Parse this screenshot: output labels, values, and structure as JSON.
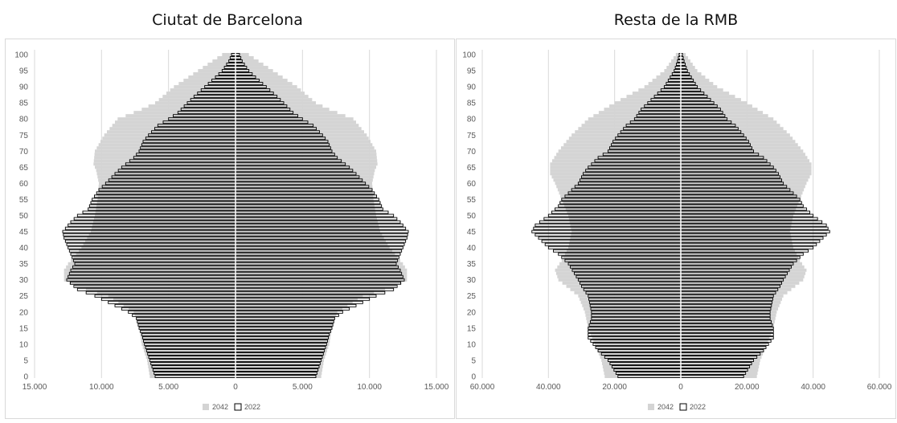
{
  "panels": [
    {
      "title": "Ciutat de Barcelona"
    },
    {
      "title": "Resta de la RMB"
    }
  ],
  "legend": {
    "items": [
      {
        "label": "2042",
        "color": "#d4d4d4"
      },
      {
        "label": "2022",
        "color": "#ffffff"
      }
    ]
  },
  "colors": {
    "bar_2042": "#d4d4d4",
    "bar_2022_fill": "#d7d7d7",
    "bar_2022_stroke": "#000000",
    "grid": "#d9d9d9",
    "center_line": "#ffffff"
  },
  "chart_data": [
    {
      "type": "bar",
      "orientation": "horizontal",
      "subtype": "population-pyramid",
      "title": "Ciutat de Barcelona",
      "xlim": [
        -15000,
        15000
      ],
      "ylim": [
        0,
        100
      ],
      "x_ticks": [
        -15000,
        -10000,
        -5000,
        0,
        5000,
        10000,
        15000
      ],
      "x_tick_labels": [
        "15.000",
        "10.000",
        "5.000",
        "0",
        "5.000",
        "10.000",
        "15.000"
      ],
      "y_ticks": [
        0,
        5,
        10,
        15,
        20,
        25,
        30,
        35,
        40,
        45,
        50,
        55,
        60,
        65,
        70,
        75,
        80,
        85,
        90,
        95,
        100
      ],
      "y_tick_labels": [
        "0",
        "5",
        "10",
        "15",
        "20",
        "25",
        "30",
        "35",
        "40",
        "45",
        "50",
        "55",
        "60",
        "65",
        "70",
        "75",
        "80",
        "85",
        "90",
        "95",
        "100"
      ],
      "grid": true,
      "legend_position": "bottom",
      "series": [
        {
          "name": "2042",
          "style": "filled-grey",
          "age_anchors": [
            [
              0,
              6400
            ],
            [
              5,
              6600
            ],
            [
              10,
              7000
            ],
            [
              15,
              7200
            ],
            [
              20,
              7600
            ],
            [
              25,
              9500
            ],
            [
              28,
              12000
            ],
            [
              30,
              12800
            ],
            [
              33,
              12800
            ],
            [
              35,
              12500
            ],
            [
              40,
              11500
            ],
            [
              45,
              10800
            ],
            [
              50,
              10500
            ],
            [
              55,
              10300
            ],
            [
              60,
              10200
            ],
            [
              64,
              10400
            ],
            [
              66,
              10600
            ],
            [
              70,
              10500
            ],
            [
              75,
              9800
            ],
            [
              78,
              9200
            ],
            [
              80,
              8800
            ],
            [
              83,
              7000
            ],
            [
              85,
              6000
            ],
            [
              90,
              4600
            ],
            [
              95,
              2800
            ],
            [
              100,
              1000
            ]
          ]
        },
        {
          "name": "2022",
          "style": "outlined",
          "age_anchors": [
            [
              0,
              6000
            ],
            [
              5,
              6400
            ],
            [
              10,
              6800
            ],
            [
              13,
              7000
            ],
            [
              15,
              7200
            ],
            [
              18,
              7400
            ],
            [
              20,
              8000
            ],
            [
              22,
              9000
            ],
            [
              25,
              10500
            ],
            [
              27,
              11800
            ],
            [
              30,
              12600
            ],
            [
              33,
              12300
            ],
            [
              35,
              12000
            ],
            [
              38,
              12300
            ],
            [
              40,
              12500
            ],
            [
              43,
              12800
            ],
            [
              45,
              12900
            ],
            [
              48,
              12300
            ],
            [
              50,
              11800
            ],
            [
              52,
              11000
            ],
            [
              55,
              10700
            ],
            [
              58,
              10200
            ],
            [
              60,
              9700
            ],
            [
              63,
              9000
            ],
            [
              65,
              8500
            ],
            [
              68,
              7600
            ],
            [
              70,
              7200
            ],
            [
              73,
              6900
            ],
            [
              75,
              6500
            ],
            [
              78,
              5800
            ],
            [
              80,
              5000
            ],
            [
              82,
              4300
            ],
            [
              85,
              3600
            ],
            [
              87,
              3100
            ],
            [
              90,
              2300
            ],
            [
              93,
              1500
            ],
            [
              95,
              1000
            ],
            [
              98,
              500
            ],
            [
              100,
              300
            ]
          ]
        }
      ]
    },
    {
      "type": "bar",
      "orientation": "horizontal",
      "subtype": "population-pyramid",
      "title": "Resta de la RMB",
      "xlim": [
        -60000,
        60000
      ],
      "ylim": [
        0,
        100
      ],
      "x_ticks": [
        -60000,
        -40000,
        -20000,
        0,
        20000,
        40000,
        60000
      ],
      "x_tick_labels": [
        "60.000",
        "40.000",
        "20.000",
        "0",
        "20.000",
        "40.000",
        "60.000"
      ],
      "y_ticks": [
        0,
        5,
        10,
        15,
        20,
        25,
        30,
        35,
        40,
        45,
        50,
        55,
        60,
        65,
        70,
        75,
        80,
        85,
        90,
        95,
        100
      ],
      "y_tick_labels": [
        "0",
        "5",
        "10",
        "15",
        "20",
        "25",
        "30",
        "35",
        "40",
        "45",
        "50",
        "55",
        "60",
        "65",
        "70",
        "75",
        "80",
        "85",
        "90",
        "95",
        "100"
      ],
      "grid": true,
      "legend_position": "bottom",
      "series": [
        {
          "name": "2042",
          "style": "filled-grey",
          "age_anchors": [
            [
              0,
              23000
            ],
            [
              5,
              24000
            ],
            [
              10,
              26000
            ],
            [
              15,
              28000
            ],
            [
              20,
              29000
            ],
            [
              25,
              31000
            ],
            [
              30,
              37000
            ],
            [
              33,
              38000
            ],
            [
              36,
              36000
            ],
            [
              40,
              34000
            ],
            [
              45,
              33000
            ],
            [
              50,
              34000
            ],
            [
              55,
              36000
            ],
            [
              60,
              38000
            ],
            [
              63,
              39500
            ],
            [
              66,
              39500
            ],
            [
              70,
              37000
            ],
            [
              75,
              33000
            ],
            [
              80,
              28000
            ],
            [
              85,
              20000
            ],
            [
              90,
              11000
            ],
            [
              95,
              5000
            ],
            [
              100,
              1500
            ]
          ]
        },
        {
          "name": "2022",
          "style": "outlined",
          "age_anchors": [
            [
              0,
              19000
            ],
            [
              5,
              22000
            ],
            [
              8,
              25000
            ],
            [
              10,
              26500
            ],
            [
              12,
              28000
            ],
            [
              15,
              28000
            ],
            [
              18,
              27000
            ],
            [
              20,
              27000
            ],
            [
              25,
              28000
            ],
            [
              28,
              30000
            ],
            [
              30,
              31000
            ],
            [
              35,
              34000
            ],
            [
              38,
              37000
            ],
            [
              40,
              40000
            ],
            [
              43,
              43000
            ],
            [
              45,
              45000
            ],
            [
              47,
              44000
            ],
            [
              50,
              40000
            ],
            [
              53,
              37000
            ],
            [
              55,
              36000
            ],
            [
              58,
              33000
            ],
            [
              60,
              31000
            ],
            [
              63,
              29500
            ],
            [
              65,
              28000
            ],
            [
              68,
              25000
            ],
            [
              70,
              22000
            ],
            [
              73,
              20500
            ],
            [
              75,
              19000
            ],
            [
              78,
              16500
            ],
            [
              80,
              14000
            ],
            [
              83,
              12000
            ],
            [
              85,
              10000
            ],
            [
              88,
              7000
            ],
            [
              90,
              5000
            ],
            [
              93,
              3200
            ],
            [
              95,
              2000
            ],
            [
              98,
              1000
            ],
            [
              100,
              500
            ]
          ]
        }
      ]
    }
  ]
}
